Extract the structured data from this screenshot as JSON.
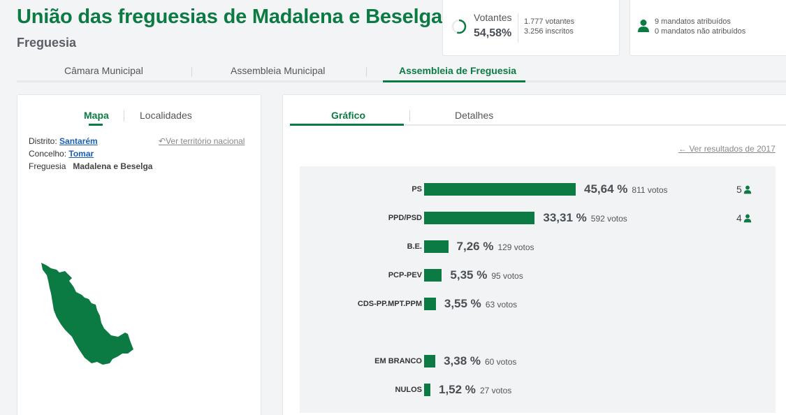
{
  "header": {
    "title": "União das freguesias de Madalena e Beselga",
    "subtitle": "Freguesia"
  },
  "votantes": {
    "label": "Votantes",
    "pct": "54,58%",
    "progress": 0.5458,
    "voters": "1.777 votantes",
    "registered": "3.256 inscritos"
  },
  "mandatos": {
    "assigned": "9 mandatos atribuídos",
    "unassigned": "0 mandatos não atribuídos"
  },
  "main_tabs": [
    {
      "label": "Câmara Municipal"
    },
    {
      "label": "Assembleia Municipal"
    },
    {
      "label": "Assembleia de Freguesia"
    }
  ],
  "left": {
    "tabs": [
      {
        "label": "Mapa"
      },
      {
        "label": "Localidades"
      }
    ],
    "distrito_label": "Distrito:",
    "distrito_value": "Santarém",
    "concelho_label": "Concelho:",
    "concelho_value": "Tomar",
    "freguesia_label": "Freguesia",
    "freguesia_value": "Madalena e Beselga",
    "national_link": "Ver território nacional"
  },
  "right": {
    "tabs": [
      {
        "label": "Gráfico"
      },
      {
        "label": "Detalhes"
      }
    ],
    "results_link": "Ver resultados de 2017"
  },
  "colors": {
    "accent": "#0c7a43",
    "link": "#1a5fb4"
  },
  "chart_data": {
    "type": "bar",
    "orientation": "horizontal",
    "series": [
      {
        "party": "PS",
        "pct": 45.64,
        "pct_label": "45,64 %",
        "votes_label": "811 votos",
        "seats": "5"
      },
      {
        "party": "PPD/PSD",
        "pct": 33.31,
        "pct_label": "33,31 %",
        "votes_label": "592 votos",
        "seats": "4"
      },
      {
        "party": "B.E.",
        "pct": 7.26,
        "pct_label": "7,26 %",
        "votes_label": "129 votos",
        "seats": ""
      },
      {
        "party": "PCP-PEV",
        "pct": 5.35,
        "pct_label": "5,35 %",
        "votes_label": "95 votos",
        "seats": ""
      },
      {
        "party": "CDS-PP.MPT.PPM",
        "pct": 3.55,
        "pct_label": "3,55 %",
        "votes_label": "63 votos",
        "seats": ""
      },
      {
        "party": "EM BRANCO",
        "pct": 3.38,
        "pct_label": "3,38 %",
        "votes_label": "60 votos",
        "seats": ""
      },
      {
        "party": "NULOS",
        "pct": 1.52,
        "pct_label": "1,52 %",
        "votes_label": "27 votos",
        "seats": ""
      }
    ]
  }
}
